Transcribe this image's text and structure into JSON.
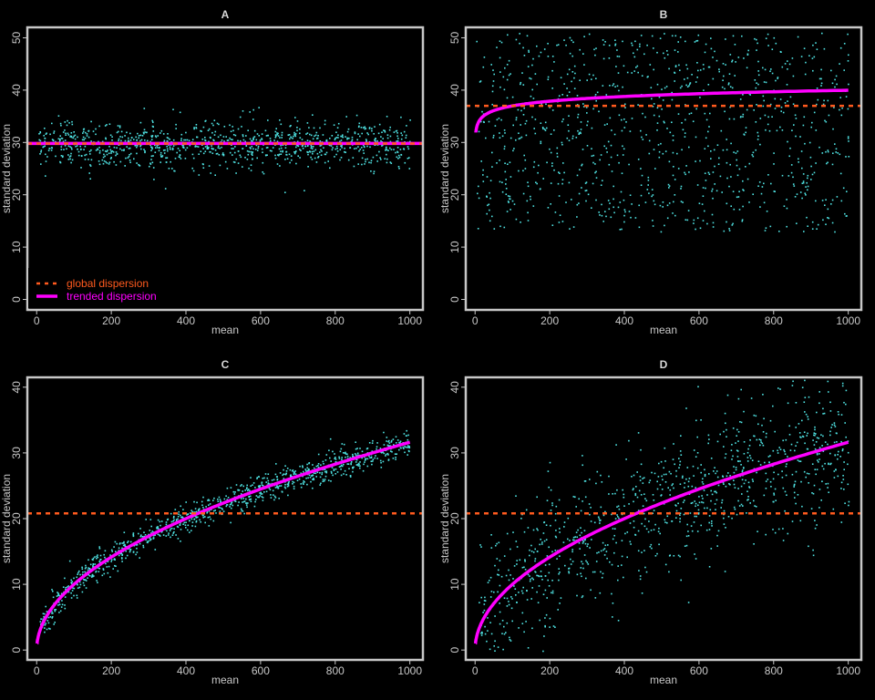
{
  "colors": {
    "background": "#000000",
    "frame": "#c8c8c8",
    "points": "#4fe3e3",
    "trend": "#ff00ff",
    "global": "#ff5a1e"
  },
  "legend": {
    "panel": 0,
    "placement": "bottom-left",
    "entries": [
      {
        "label": "global dispersion",
        "color": "#ff5a1e",
        "style": "dashed"
      },
      {
        "label": "trended dispersion",
        "color": "#ff00ff",
        "style": "solid"
      }
    ]
  },
  "chart_data": [
    {
      "type": "scatter",
      "title": "A",
      "xlabel": "mean",
      "ylabel": "standard deviation",
      "xlim": [
        -25,
        1035
      ],
      "ylim": [
        -2,
        52
      ],
      "xticks": [
        0,
        200,
        400,
        600,
        800,
        1000
      ],
      "yticks": [
        0,
        10,
        20,
        30,
        40,
        50
      ],
      "grid": false,
      "points": {
        "n": 1000,
        "x_range": [
          1,
          1000
        ],
        "model": "constant",
        "center": 29.8,
        "spread": 2.2
      },
      "series": [
        {
          "kind": "trend",
          "model": "constant",
          "value": 29.8
        },
        {
          "kind": "global",
          "model": "constant",
          "value": 29.8
        }
      ]
    },
    {
      "type": "scatter",
      "title": "B",
      "xlabel": "mean",
      "ylabel": "standard deviation",
      "xlim": [
        -25,
        1035
      ],
      "ylim": [
        -2,
        52
      ],
      "xticks": [
        0,
        200,
        400,
        600,
        800,
        1000
      ],
      "yticks": [
        0,
        10,
        20,
        30,
        40,
        50
      ],
      "grid": false,
      "points": {
        "n": 1000,
        "x_range": [
          1,
          1000
        ],
        "model": "uniform",
        "low": 13,
        "high": 51
      },
      "series": [
        {
          "kind": "trend",
          "model": "log",
          "a": 31,
          "b": 1.3,
          "x": [
            2,
            1000
          ]
        },
        {
          "kind": "global",
          "model": "constant",
          "value": 37
        }
      ]
    },
    {
      "type": "scatter",
      "title": "C",
      "xlabel": "mean",
      "ylabel": "standard deviation",
      "xlim": [
        -25,
        1035
      ],
      "ylim": [
        -1.5,
        41.5
      ],
      "xticks": [
        0,
        200,
        400,
        600,
        800,
        1000
      ],
      "yticks": [
        0,
        10,
        20,
        30,
        40
      ],
      "grid": false,
      "points": {
        "n": 1000,
        "x_range": [
          8,
          1000
        ],
        "model": "sqrt",
        "coef": 1.0,
        "spread": 1.1
      },
      "series": [
        {
          "kind": "trend",
          "model": "sqrt",
          "coef": 1.0,
          "x": [
            1,
            1000
          ]
        },
        {
          "kind": "global",
          "model": "constant",
          "value": 20.8
        }
      ]
    },
    {
      "type": "scatter",
      "title": "D",
      "xlabel": "mean",
      "ylabel": "standard deviation",
      "xlim": [
        -25,
        1035
      ],
      "ylim": [
        -1.5,
        41.5
      ],
      "xticks": [
        0,
        200,
        400,
        600,
        800,
        1000
      ],
      "yticks": [
        0,
        10,
        20,
        30,
        40
      ],
      "grid": false,
      "points": {
        "n": 1000,
        "x_range": [
          8,
          1000
        ],
        "model": "sqrt",
        "coef": 1.0,
        "spread": 5.5
      },
      "series": [
        {
          "kind": "trend",
          "model": "sqrt",
          "coef": 1.0,
          "x": [
            1,
            1000
          ]
        },
        {
          "kind": "global",
          "model": "constant",
          "value": 20.8
        }
      ]
    }
  ]
}
